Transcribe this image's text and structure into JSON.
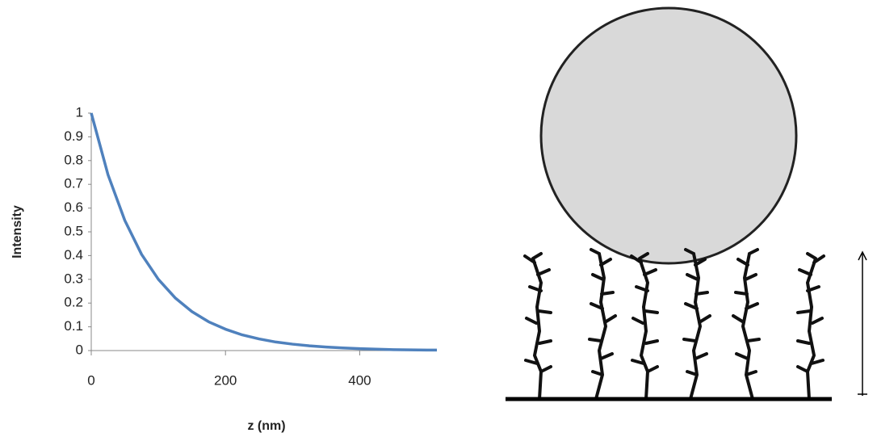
{
  "chart_data": {
    "type": "line",
    "x_label": "z (nm)",
    "y_label": "Intensity",
    "x": [
      0,
      25,
      50,
      75,
      100,
      125,
      150,
      175,
      200,
      225,
      250,
      275,
      300,
      325,
      350,
      375,
      400,
      425,
      450,
      475,
      500,
      515
    ],
    "values": [
      1,
      0.74,
      0.548,
      0.405,
      0.3,
      0.222,
      0.164,
      0.121,
      0.09,
      0.066,
      0.049,
      0.036,
      0.027,
      0.02,
      0.015,
      0.011,
      0.008,
      0.006,
      0.004,
      0.003,
      0.002,
      0.002
    ],
    "color": "#4f81bd",
    "xlim": [
      0,
      515
    ],
    "xticks": [
      0,
      200,
      400
    ],
    "ylim": [
      0,
      1
    ],
    "yticks": [
      0,
      0.1,
      0.2,
      0.3,
      0.4,
      0.5,
      0.6,
      0.7,
      0.8,
      0.9,
      1
    ],
    "grid": false
  }
}
